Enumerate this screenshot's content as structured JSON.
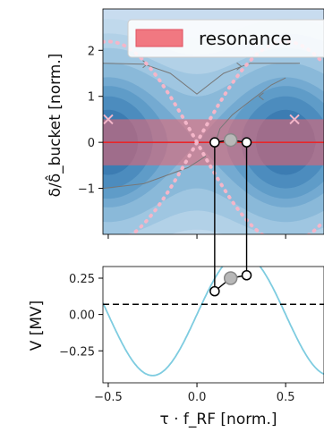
{
  "chart_data": [
    {
      "type": "contour",
      "ylabel": "δ/δ̂_bucket [norm.]",
      "ylim": [
        -2.0,
        2.9
      ],
      "xlim": [
        -0.53,
        0.58
      ],
      "yticks": [
        "2",
        "1",
        "0",
        "−1"
      ],
      "ytick_values": [
        2,
        1,
        0,
        -1
      ],
      "legend": {
        "label": "resonance",
        "color": "#f0606b",
        "placement": "top-right"
      },
      "resonance_band": {
        "y": [
          -0.5,
          0.5
        ],
        "color": "#f0606b"
      },
      "zero_line": {
        "y": 0,
        "color": "#e8262a"
      },
      "separatrix": {
        "color": "#f4b6c9",
        "style": "dotted"
      },
      "markers": [
        {
          "x": 0.1,
          "y": 0.0,
          "style": "open"
        },
        {
          "x": 0.19,
          "y": 0.05,
          "style": "filled-grey"
        },
        {
          "x": 0.28,
          "y": 0.0,
          "style": "open"
        }
      ],
      "fixed_point_markers": [
        {
          "x": -0.5,
          "y": 0.5
        },
        {
          "x": 0.55,
          "y": 0.5
        }
      ]
    },
    {
      "type": "line",
      "xlabel": "τ · f_RF [norm.]",
      "ylabel": "V [MV]",
      "xlim": [
        -0.53,
        0.58
      ],
      "ylim": [
        -0.47,
        0.33
      ],
      "xticks": [
        "−0.5",
        "0.0",
        "0.5"
      ],
      "xtick_values": [
        -0.5,
        0.0,
        0.5
      ],
      "yticks": [
        "0.25",
        "0.00",
        "−0.25"
      ],
      "ytick_values": [
        0.25,
        0.0,
        -0.25
      ],
      "series": [
        {
          "amplitude": 0.42,
          "period": 1.0,
          "peak_at": 0.25,
          "color": "#7ecce0"
        }
      ],
      "reference_line": {
        "y": 0.07,
        "style": "dashed",
        "color": "#000000"
      },
      "markers": [
        {
          "x": 0.1,
          "y": 0.16,
          "style": "open"
        },
        {
          "x": 0.19,
          "y": 0.25,
          "style": "filled-grey"
        },
        {
          "x": 0.28,
          "y": 0.27,
          "style": "open"
        }
      ]
    }
  ]
}
